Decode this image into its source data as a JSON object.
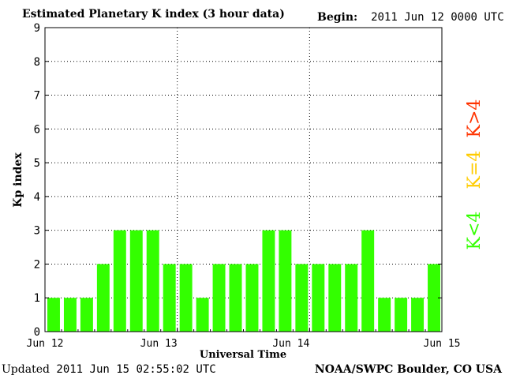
{
  "header": {
    "title": "Estimated Planetary K index (3 hour data)",
    "begin_label": "Begin:",
    "begin_value": "2011 Jun 12 0000 UTC"
  },
  "footer": {
    "updated_label": "Updated",
    "updated_value": "2011 Jun 15 02:55:02 UTC",
    "credit": "NOAA/SWPC Boulder, CO USA"
  },
  "colors": {
    "bar": "#33ff00",
    "legend_low": "#33ff00",
    "legend_mid": "#ffcc00",
    "legend_high": "#ff3300"
  },
  "legend": {
    "low": "K<4",
    "mid": "K=4",
    "high": "K>4"
  },
  "chart_data": {
    "type": "bar",
    "title": "Estimated Planetary K index (3 hour data)",
    "xlabel": "Universal Time",
    "ylabel": "Kp index",
    "ylim": [
      0,
      9
    ],
    "yticks": [
      "0",
      "1",
      "2",
      "3",
      "4",
      "5",
      "6",
      "7",
      "8",
      "9"
    ],
    "xticks": [
      "Jun 12",
      "Jun 13",
      "Jun 14",
      "Jun 15"
    ],
    "grid": true,
    "values": [
      1,
      1,
      1,
      2,
      3,
      3,
      3,
      2,
      2,
      1,
      2,
      2,
      2,
      3,
      3,
      2,
      2,
      2,
      2,
      3,
      1,
      1,
      1,
      2
    ]
  }
}
